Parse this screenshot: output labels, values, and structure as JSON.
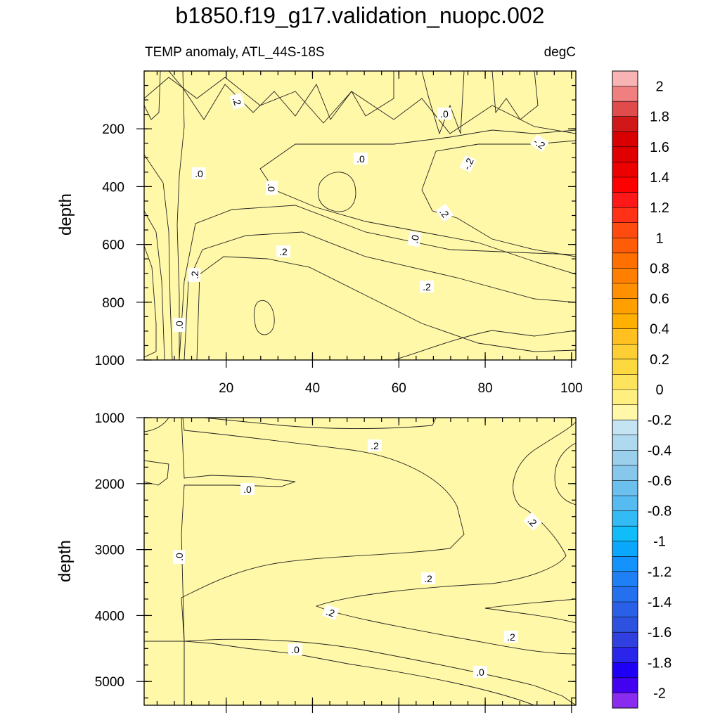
{
  "chart_data": {
    "type": "heatmap",
    "title": "b1850.f19_g17.validation_nuopc.002",
    "subtitle_left": "TEMP anomaly, ATL_44S-18S",
    "subtitle_right": "degC",
    "panels": [
      {
        "name": "upper",
        "ylabel": "depth",
        "xlim": [
          1,
          101
        ],
        "ylim": [
          1000,
          0
        ],
        "x_ticks": [
          "20",
          "40",
          "60",
          "80",
          "100"
        ],
        "y_ticks": [
          "200",
          "400",
          "600",
          "800",
          "1000"
        ],
        "contour_labels": [
          ".2",
          ".0",
          "-.2",
          ".0",
          ".0",
          "-.2",
          ".2",
          ".0",
          ".0",
          ".2",
          ".2",
          ".2",
          ".0"
        ]
      },
      {
        "name": "lower",
        "ylabel": "depth",
        "xlim": [
          1,
          101
        ],
        "ylim": [
          5300,
          1000
        ],
        "x_ticks": [],
        "y_ticks": [
          "1000",
          "2000",
          "3000",
          "4000",
          "5000"
        ],
        "contour_labels": [
          ".2",
          ".0",
          ".2",
          ".0",
          ".2",
          ".2",
          ".2",
          ".0",
          ".0"
        ]
      }
    ],
    "colorbar": {
      "tick_labels": [
        "2",
        "1.8",
        "1.6",
        "1.4",
        "1.2",
        "1",
        "0.8",
        "0.6",
        "0.4",
        "0.2",
        "0",
        "-0.2",
        "-0.4",
        "-0.6",
        "-0.8",
        "-1",
        "-1.2",
        "-1.4",
        "-1.6",
        "-1.8",
        "-2"
      ],
      "range": [
        -2,
        2
      ],
      "step": 0.1,
      "colors_top_to_bottom": [
        "#f8b4b4",
        "#f07f7f",
        "#e04c4c",
        "#d01818",
        "#d80000",
        "#e00000",
        "#ec0000",
        "#ff0000",
        "#ff1818",
        "#ff3218",
        "#ff4b10",
        "#ff5c08",
        "#ff7000",
        "#ff8000",
        "#ff9000",
        "#ffa000",
        "#ffb000",
        "#ffc020",
        "#fdcf35",
        "#fdd940",
        "#fee45c",
        "#ffef80",
        "#fff8a8",
        "#c4e3f3",
        "#afd9ef",
        "#9bd0ed",
        "#87c7eb",
        "#6cc0ee",
        "#55bbf0",
        "#33bbf5",
        "#10bdf8",
        "#0aa8fc",
        "#1593fc",
        "#1f80f5",
        "#2470ee",
        "#2a60e8",
        "#2e52e0",
        "#3040e0",
        "#2a25ea",
        "#2000f5",
        "#4400f0",
        "#8a2cf0"
      ]
    },
    "field_colors": {
      "neg_02": "#a9d5ee",
      "neg_01": "#c4e3f3",
      "pos_01": "#fff8a8",
      "pos_02": "#ffef80",
      "pos_03": "#fee45c",
      "pos_04": "#fdd940",
      "pos_05": "#fdcf35",
      "neg_03": "#87c7eb",
      "neg_04": "#55bbf0"
    }
  }
}
